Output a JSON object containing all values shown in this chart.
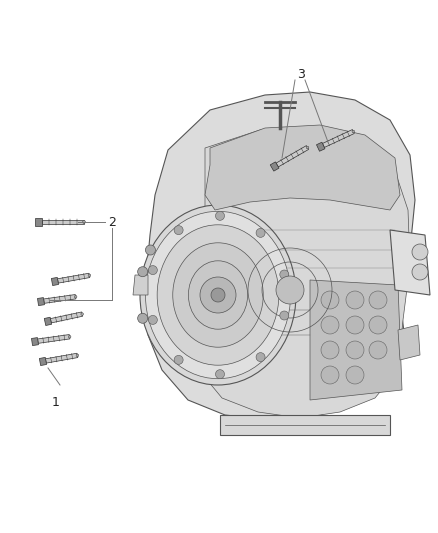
{
  "background_color": "#ffffff",
  "figsize": [
    4.38,
    5.33
  ],
  "dpi": 100,
  "label_1": "1",
  "label_2": "2",
  "label_3": "3",
  "line_color": "#555555",
  "line_color_light": "#888888",
  "line_color_dark": "#333333",
  "bolt_head_color": "#666666",
  "callout_line_color": "#777777",
  "trans_fill": "#e8e8e8",
  "trans_fill_dark": "#d0d0d0",
  "trans_fill_mid": "#dcdcdc"
}
